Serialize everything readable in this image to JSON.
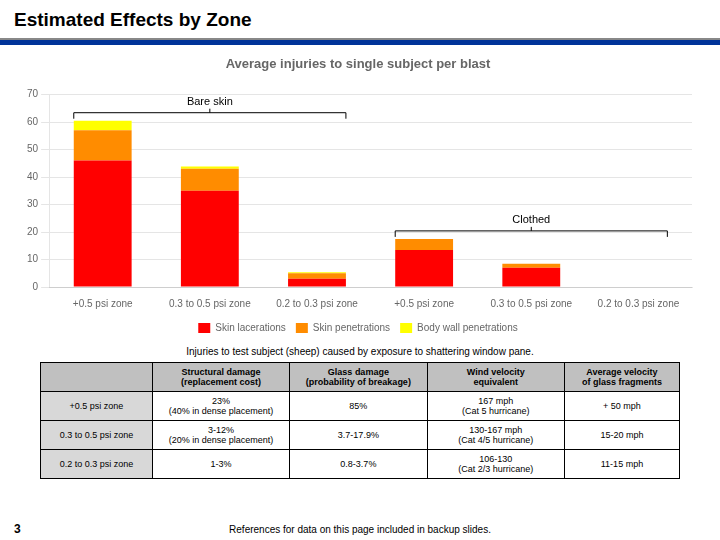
{
  "page_title": "Estimated Effects by Zone",
  "chart_data": {
    "type": "bar",
    "title": "Average injuries to single subject per blast",
    "annotations": [
      "Bare skin",
      "Clothed"
    ],
    "categories": [
      "+0.5 psi zone",
      "0.3 to 0.5 psi zone",
      "0.2 to 0.3 psi zone",
      "+0.5 psi zone",
      "0.3 to 0.5 psi zone",
      "0.2 to 0.3 psi zone"
    ],
    "series": [
      {
        "name": "Skin lacerations",
        "color": "#FF0000",
        "values": [
          46,
          35,
          3,
          13.5,
          7,
          0
        ]
      },
      {
        "name": "Skin penetrations",
        "color": "#FF8C00",
        "values": [
          11,
          8,
          2,
          4,
          1.5,
          0
        ]
      },
      {
        "name": "Body wall penetrations",
        "color": "#FFFF00",
        "values": [
          3.5,
          0.8,
          0.4,
          0,
          0,
          0
        ]
      }
    ],
    "stacked": true,
    "ylim": [
      0,
      70
    ],
    "yticks": [
      0,
      10,
      20,
      30,
      40,
      50,
      60,
      70
    ],
    "grid": true,
    "legend": "bottom"
  },
  "footnote": "Injuries to test subject (sheep) caused by exposure to shattering window pane.",
  "table": {
    "headers": [
      "",
      "Structural damage\n(replacement cost)",
      "Glass damage\n(probability of breakage)",
      "Wind velocity\nequivalent",
      "Average velocity\nof glass fragments"
    ],
    "rows": [
      [
        "+0.5 psi zone",
        "23%\n(40% in dense placement)",
        "85%",
        "167 mph\n(Cat 5 hurricane)",
        "+ 50 mph"
      ],
      [
        "0.3 to 0.5 psi zone",
        "3-12%\n(20% in dense placement)",
        "3.7-17.9%",
        "130-167 mph\n(Cat 4/5 hurricane)",
        "15-20 mph"
      ],
      [
        "0.2 to 0.3 psi zone",
        "1-3%",
        "0.8-3.7%",
        "106-130\n(Cat 2/3 hurricane)",
        "11-15 mph"
      ]
    ],
    "header_color": "#C0C0C0",
    "first_column_color": "#D8D8D8",
    "cell_color": "#FFFFFF"
  },
  "page_number": "3",
  "references": "References for data on this page included in backup slides."
}
